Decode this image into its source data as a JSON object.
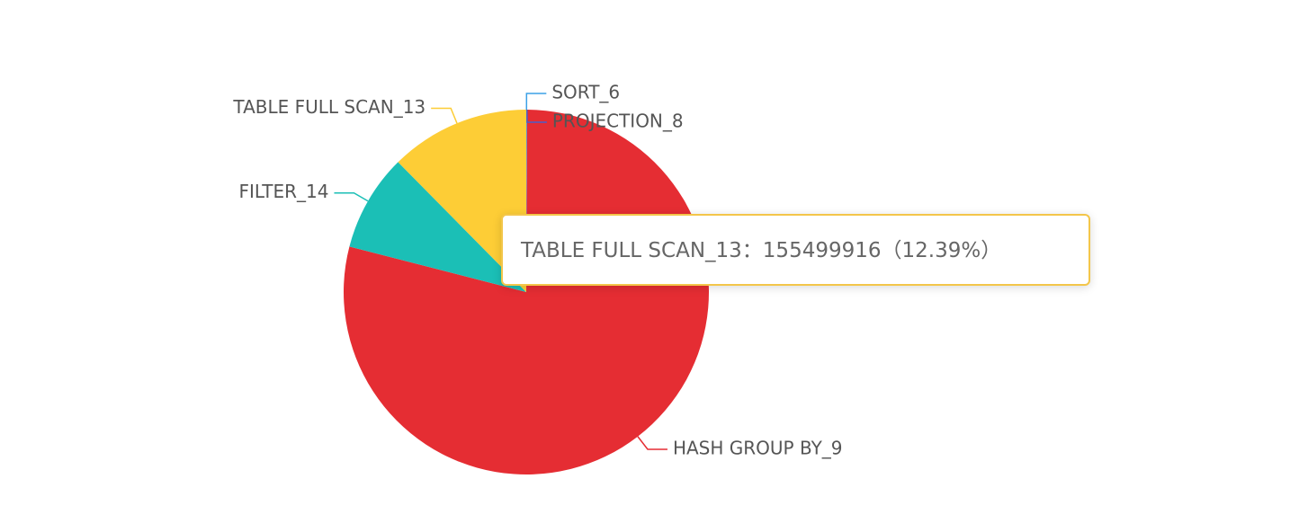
{
  "chart_data": {
    "type": "pie",
    "categories": [
      "SORT_6",
      "PROJECTION_8",
      "HASH GROUP BY_9",
      "FILTER_14",
      "TABLE FULL SCAN_13"
    ],
    "values": [
      600000,
      400000,
      991000000,
      108000000,
      155499916
    ],
    "colors": [
      "#3ba0e6",
      "#4b5fc9",
      "#e52d33",
      "#1bbfb6",
      "#fdcd36"
    ],
    "tooltip": "TABLE FULL SCAN_13：155499916（12.39%）"
  }
}
